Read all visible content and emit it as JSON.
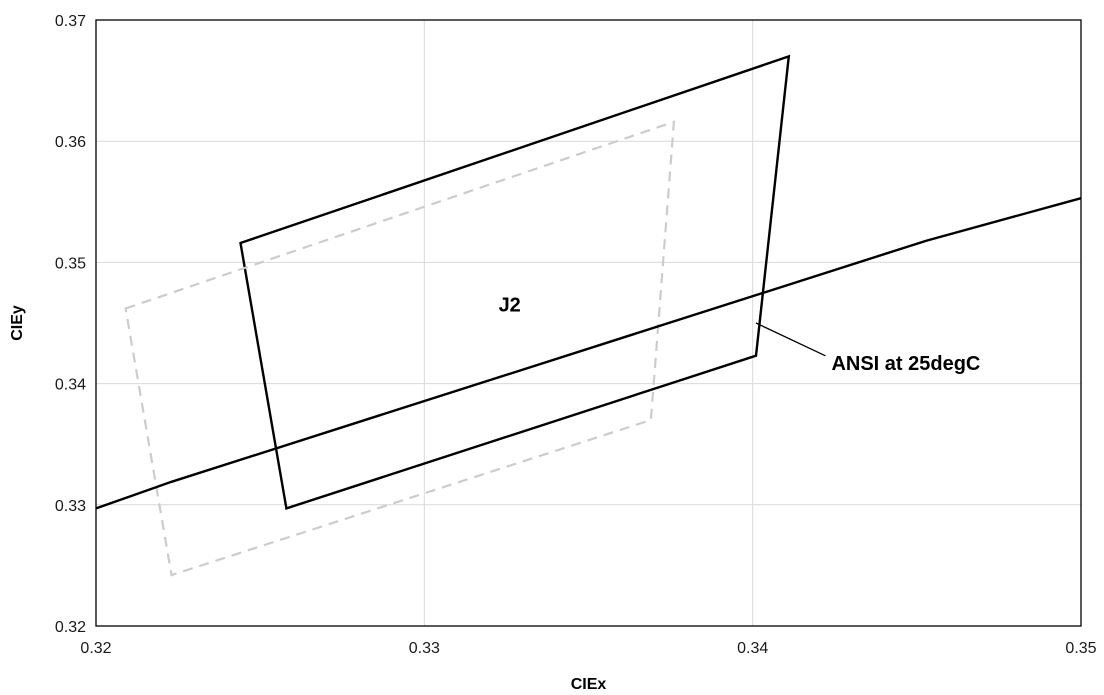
{
  "chart_data": {
    "type": "line",
    "title": "",
    "xlabel": "CIEx",
    "ylabel": "CIEy",
    "xlim": [
      0.32,
      0.35
    ],
    "ylim": [
      0.32,
      0.37
    ],
    "grid": true,
    "xticks": [
      "0.32",
      "0.33",
      "0.34",
      "0.35"
    ],
    "yticks": [
      "0.32",
      "0.33",
      "0.34",
      "0.35",
      "0.36",
      "0.37"
    ],
    "series": [
      {
        "name": "",
        "style": "solid",
        "color": "#000000",
        "closed": true,
        "points": [
          [
            0.3244,
            0.3516
          ],
          [
            0.3411,
            0.367
          ],
          [
            0.3401,
            0.3423
          ],
          [
            0.3258,
            0.3297
          ]
        ]
      },
      {
        "name": "",
        "style": "dashed",
        "color": "#cccccc",
        "closed": true,
        "points": [
          [
            0.3209,
            0.3462
          ],
          [
            0.3376,
            0.3616
          ],
          [
            0.3369,
            0.337
          ],
          [
            0.3223,
            0.3242
          ]
        ]
      },
      {
        "name": "",
        "style": "solid",
        "color": "#000000",
        "closed": false,
        "points": [
          [
            0.32,
            0.3297
          ],
          [
            0.3223,
            0.3319
          ],
          [
            0.3453,
            0.3518
          ],
          [
            0.35,
            0.3553
          ]
        ]
      }
    ],
    "annotations": [
      {
        "text": "J2",
        "x": 0.3326,
        "y": 0.3466
      },
      {
        "text": "ANSI at 25degC",
        "x": 0.3424,
        "y": 0.3418,
        "pointer_to": [
          0.3401,
          0.345
        ]
      }
    ]
  }
}
